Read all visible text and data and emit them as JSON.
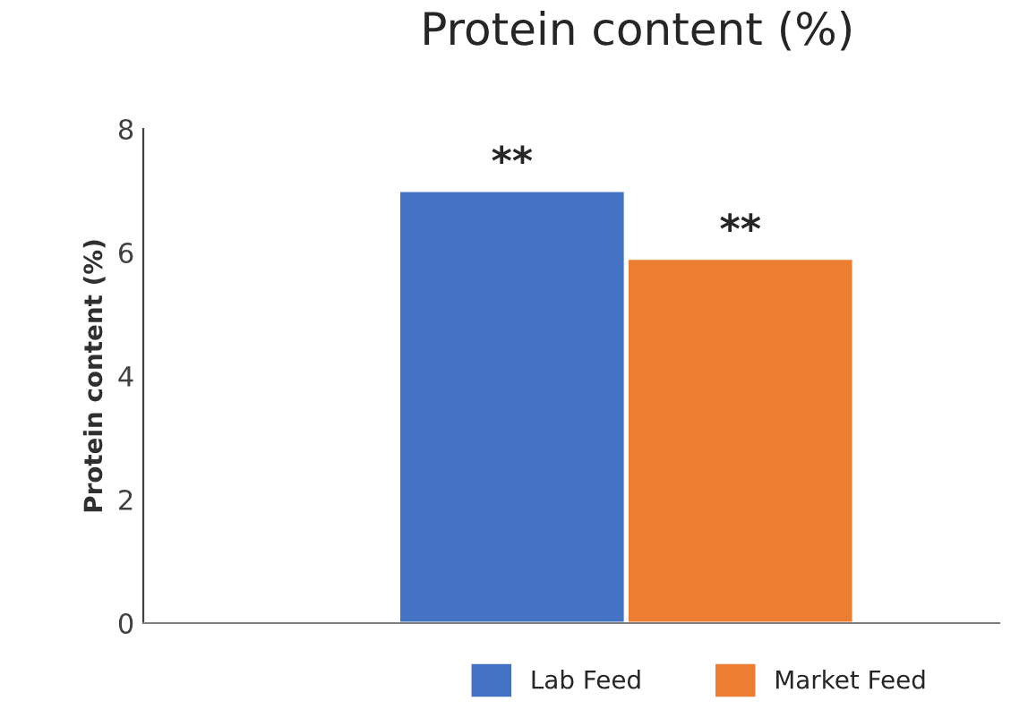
{
  "chart_data": {
    "type": "bar",
    "title": "Protein content (%)",
    "ylabel": "Protein content (%)",
    "categories": [
      null
    ],
    "series": [
      {
        "name": "Lab Feed",
        "color": "#4472c4",
        "values": [
          7.0
        ]
      },
      {
        "name": "Market Feed",
        "color": "#ed7d31",
        "values": [
          5.9
        ]
      }
    ],
    "annotations": [
      "**",
      "**"
    ],
    "ylim": [
      0,
      8
    ],
    "yticks": [
      0,
      2,
      4,
      6,
      8
    ],
    "grid": false,
    "legend": "bottom"
  }
}
